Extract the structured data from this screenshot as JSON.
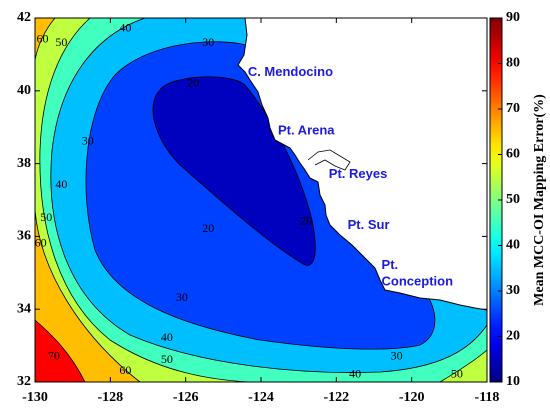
{
  "chart_data": {
    "type": "contour",
    "xlim": [
      -130,
      -118
    ],
    "xticks": [
      -130,
      -128,
      -126,
      -124,
      -122,
      -120,
      -118
    ],
    "ylim": [
      32,
      42
    ],
    "yticks": [
      32,
      34,
      36,
      38,
      40,
      42
    ],
    "contour_levels": [
      20,
      30,
      40,
      50,
      60,
      70
    ],
    "colormap": "jet",
    "colorbar": {
      "label": "Mean MCC-OI Mapping Error(%)",
      "lim": [
        10,
        90
      ],
      "ticks": [
        10,
        20,
        30,
        40,
        50,
        60,
        70,
        80,
        90
      ]
    },
    "contour_labels": [
      {
        "value": 60,
        "x": -129.8,
        "y": 41.4
      },
      {
        "value": 50,
        "x": -129.3,
        "y": 41.3
      },
      {
        "value": 40,
        "x": -127.6,
        "y": 41.7
      },
      {
        "value": 30,
        "x": -125.4,
        "y": 41.3
      },
      {
        "value": 20,
        "x": -125.8,
        "y": 40.2
      },
      {
        "value": 30,
        "x": -128.6,
        "y": 38.6
      },
      {
        "value": 40,
        "x": -129.3,
        "y": 37.4
      },
      {
        "value": 50,
        "x": -129.7,
        "y": 36.5
      },
      {
        "value": 60,
        "x": -129.85,
        "y": 35.8
      },
      {
        "value": 20,
        "x": -125.4,
        "y": 36.2
      },
      {
        "value": 20,
        "x": -122.8,
        "y": 36.4
      },
      {
        "value": 30,
        "x": -126.1,
        "y": 34.3
      },
      {
        "value": 40,
        "x": -126.5,
        "y": 33.2
      },
      {
        "value": 50,
        "x": -126.5,
        "y": 32.6
      },
      {
        "value": 60,
        "x": -127.6,
        "y": 32.3
      },
      {
        "value": 70,
        "x": -129.5,
        "y": 32.7
      },
      {
        "value": 30,
        "x": -120.4,
        "y": 32.7
      },
      {
        "value": 40,
        "x": -121.5,
        "y": 32.2
      },
      {
        "value": 50,
        "x": -118.8,
        "y": 32.2
      }
    ],
    "annotations": [
      {
        "text": "C. Mendocino",
        "x": -124.35,
        "y": 40.5
      },
      {
        "text": "Pt. Arena",
        "x": -123.55,
        "y": 38.9
      },
      {
        "text": "Pt. Reyes",
        "x": -122.2,
        "y": 37.7
      },
      {
        "text": "Pt. Sur",
        "x": -121.7,
        "y": 36.3
      },
      {
        "text": "Pt.",
        "x": -120.8,
        "y": 35.2
      },
      {
        "text": "Conception",
        "x": -120.8,
        "y": 34.75
      }
    ]
  }
}
